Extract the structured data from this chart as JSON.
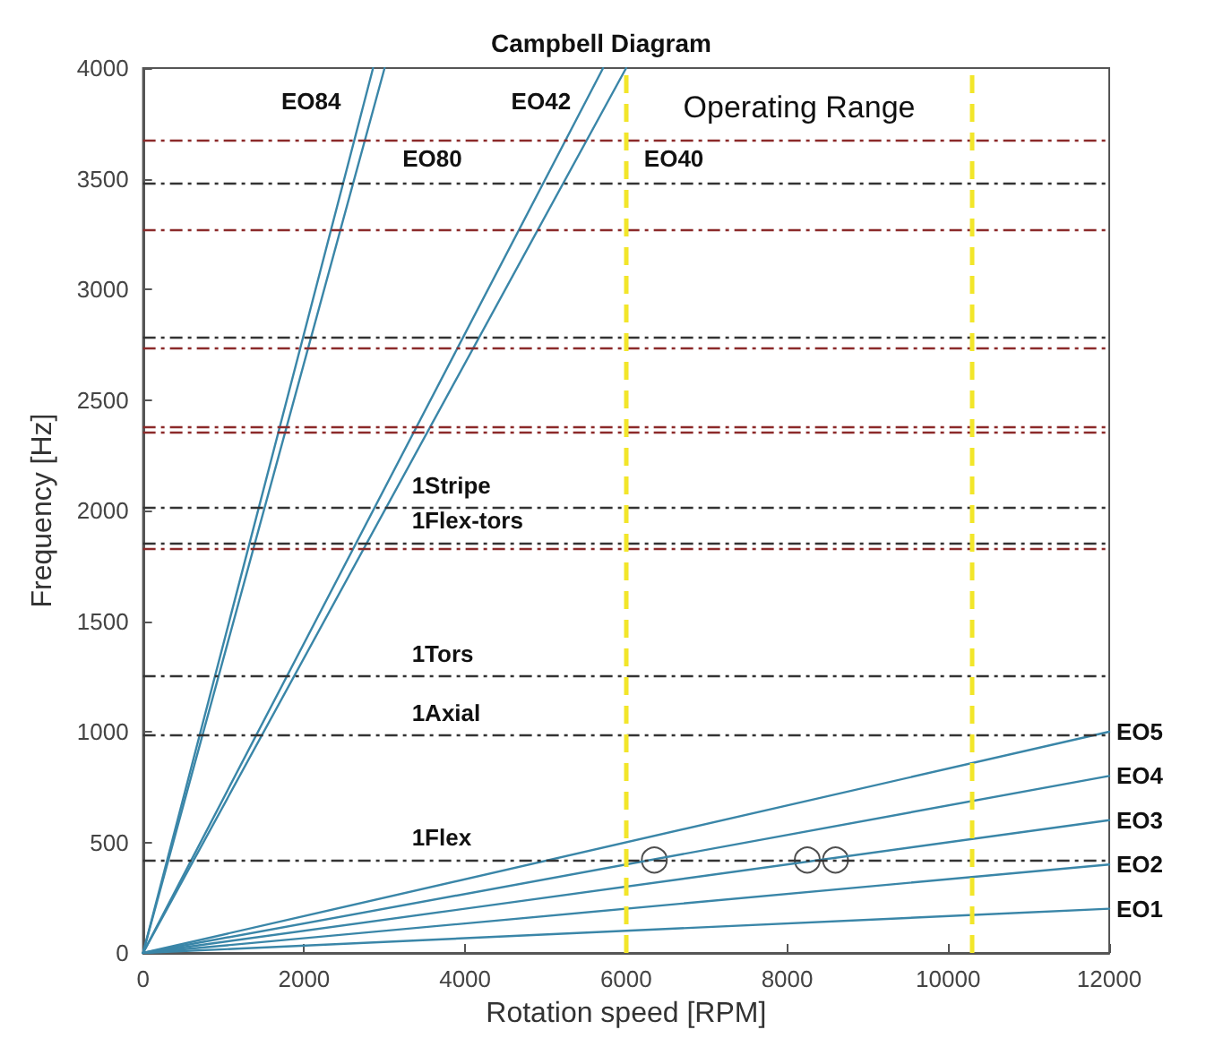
{
  "chart_data": {
    "type": "line",
    "title": "Campbell Diagram",
    "xlabel": "Rotation speed [RPM]",
    "ylabel": "Frequency [Hz]",
    "xlim": [
      0,
      12000
    ],
    "xticks": [
      0,
      2000,
      4000,
      6000,
      8000,
      10000,
      12000
    ],
    "ylim": [
      0,
      4000
    ],
    "yticks": [
      0,
      500,
      1000,
      1500,
      2000,
      2500,
      3000,
      3500,
      4000
    ],
    "grid": false,
    "legend": false,
    "marker": "none",
    "line_style": "solid",
    "series": [
      {
        "name": "EO1",
        "color": "#3a86a8",
        "x": [
          0,
          12000
        ],
        "values": [
          0,
          200
        ]
      },
      {
        "name": "EO2",
        "color": "#3a86a8",
        "x": [
          0,
          12000
        ],
        "values": [
          0,
          400
        ]
      },
      {
        "name": "EO3",
        "color": "#3a86a8",
        "x": [
          0,
          12000
        ],
        "values": [
          0,
          600
        ]
      },
      {
        "name": "EO4",
        "color": "#3a86a8",
        "x": [
          0,
          12000
        ],
        "values": [
          0,
          800
        ]
      },
      {
        "name": "EO5",
        "color": "#3a86a8",
        "x": [
          0,
          12000
        ],
        "values": [
          0,
          1000
        ]
      },
      {
        "name": "EO84",
        "color": "#3a86a8",
        "x": [
          0,
          2857
        ],
        "values": [
          0,
          4000
        ]
      },
      {
        "name": "EO80",
        "color": "#3a86a8",
        "x": [
          0,
          3000
        ],
        "values": [
          0,
          4000
        ]
      },
      {
        "name": "EO42",
        "color": "#3a86a8",
        "x": [
          0,
          5714
        ],
        "values": [
          0,
          4000
        ]
      },
      {
        "name": "EO40",
        "color": "#3a86a8",
        "x": [
          0,
          6000
        ],
        "values": [
          0,
          4000
        ]
      },
      {
        "type": "scatter",
        "marker": "circle",
        "color": "#222222",
        "x": [
          6350,
          8250,
          8600
        ],
        "values": [
          420,
          420,
          420
        ]
      }
    ],
    "ref_lines": [
      {
        "axis": "y",
        "value": 3673,
        "color": "#8b2a2a",
        "line_style": "dashed"
      },
      {
        "axis": "y",
        "value": 3479,
        "color": "#333333",
        "line_style": "dashed"
      },
      {
        "axis": "y",
        "value": 3273,
        "color": "#8b2a2a",
        "line_style": "dashed"
      },
      {
        "axis": "y",
        "value": 2782,
        "color": "#333333",
        "line_style": "dashed"
      },
      {
        "axis": "y",
        "value": 2733,
        "color": "#8b2a2a",
        "line_style": "dashed"
      },
      {
        "axis": "y",
        "value": 2376,
        "color": "#8b2a2a",
        "line_style": "dashed"
      },
      {
        "axis": "y",
        "value": 2352,
        "color": "#8b2a2a",
        "line_style": "dashed"
      },
      {
        "axis": "y",
        "value": 2012,
        "color": "#333333",
        "line_style": "dashed",
        "label": "1Stripe"
      },
      {
        "axis": "y",
        "value": 1853,
        "color": "#333333",
        "line_style": "dashed",
        "label": "1Flex-tors"
      },
      {
        "axis": "y",
        "value": 1829,
        "color": "#8b2a2a",
        "line_style": "dashed"
      },
      {
        "axis": "y",
        "value": 1250,
        "color": "#333333",
        "line_style": "dashed",
        "label": "1Tors"
      },
      {
        "axis": "y",
        "value": 985,
        "color": "#333333",
        "line_style": "dashed",
        "label": "1Axial"
      },
      {
        "axis": "y",
        "value": 420,
        "color": "#333333",
        "line_style": "dashed",
        "label": "1Flex"
      },
      {
        "axis": "x",
        "value": 6000,
        "color": "#f2e62a",
        "line_style": "dashed"
      },
      {
        "axis": "x",
        "value": 10300,
        "color": "#f2e62a",
        "line_style": "dashed"
      }
    ],
    "annotations": [
      "Operating Range"
    ]
  }
}
